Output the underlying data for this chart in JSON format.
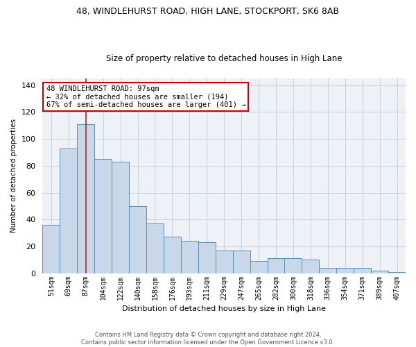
{
  "title1": "48, WINDLEHURST ROAD, HIGH LANE, STOCKPORT, SK6 8AB",
  "title2": "Size of property relative to detached houses in High Lane",
  "xlabel": "Distribution of detached houses by size in High Lane",
  "ylabel": "Number of detached properties",
  "categories": [
    "51sqm",
    "69sqm",
    "87sqm",
    "104sqm",
    "122sqm",
    "140sqm",
    "158sqm",
    "176sqm",
    "193sqm",
    "211sqm",
    "229sqm",
    "247sqm",
    "265sqm",
    "282sqm",
    "300sqm",
    "318sqm",
    "336sqm",
    "354sqm",
    "371sqm",
    "389sqm",
    "407sqm"
  ],
  "values": [
    36,
    93,
    111,
    85,
    83,
    50,
    37,
    27,
    24,
    23,
    17,
    17,
    9,
    11,
    11,
    10,
    4,
    4,
    4,
    2,
    1
  ],
  "bar_color": "#c8d8ea",
  "bar_edge_color": "#5b8db0",
  "vline_x_index": 2,
  "vline_color": "#bb2222",
  "annotation_text": "48 WINDLEHURST ROAD: 97sqm\n← 32% of detached houses are smaller (194)\n67% of semi-detached houses are larger (401) →",
  "annotation_box_color": "#ffffff",
  "annotation_border_color": "#cc0000",
  "footer_text": "Contains HM Land Registry data © Crown copyright and database right 2024.\nContains public sector information licensed under the Open Government Licence v3.0.",
  "ylim": [
    0,
    145
  ],
  "background_color": "#eef2f7",
  "grid_color": "#c8d4e0"
}
